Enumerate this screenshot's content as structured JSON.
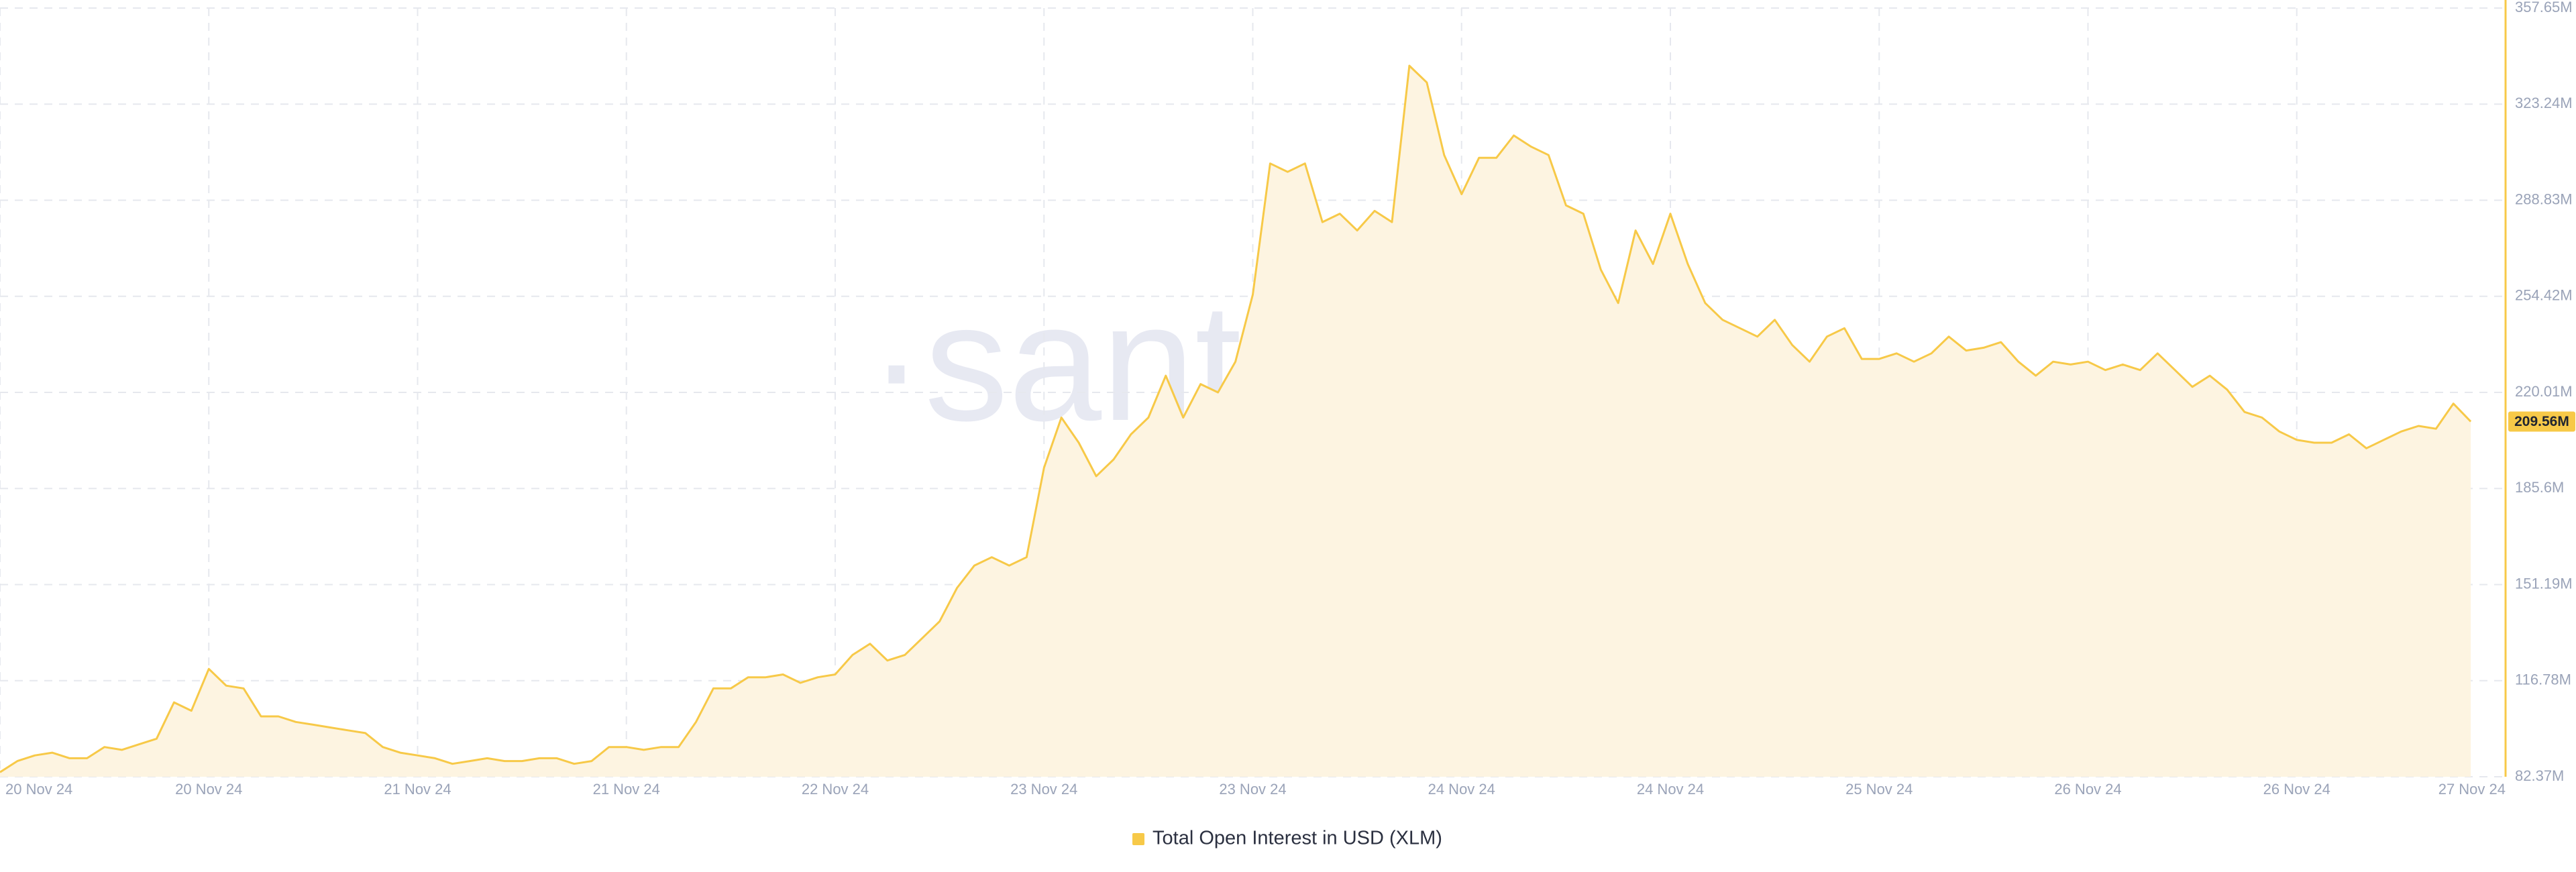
{
  "chart_data": {
    "type": "area",
    "watermark": "·santiment·",
    "series": [
      {
        "name": "Total Open Interest in USD (XLM)",
        "color": "#f7c948",
        "fill": "#fdf4e1",
        "x": [
          0,
          1,
          2,
          3,
          4,
          5,
          6,
          7,
          8,
          9,
          10,
          11,
          12,
          13,
          14,
          15,
          16,
          17,
          18,
          19,
          20,
          21,
          22,
          23,
          24,
          25,
          26,
          27,
          28,
          29,
          30,
          31,
          32,
          33,
          34,
          35,
          36,
          37,
          38,
          39,
          40,
          41,
          42,
          43,
          44,
          45,
          46,
          47,
          48,
          49,
          50,
          51,
          52,
          53,
          54,
          55,
          56,
          57,
          58,
          59,
          60,
          61,
          62,
          63,
          64,
          65,
          66,
          67,
          68,
          69,
          70,
          71,
          72,
          73,
          74,
          75,
          76,
          77,
          78,
          79,
          80,
          81,
          82,
          83,
          84,
          85,
          86,
          87,
          88,
          89,
          90,
          91,
          92,
          93,
          94,
          95,
          96,
          97,
          98,
          99,
          100,
          101,
          102,
          103,
          104,
          105,
          106,
          107,
          108,
          109,
          110,
          111,
          112,
          113,
          114,
          115,
          116,
          117,
          118,
          119,
          120,
          121,
          122,
          123,
          124,
          125,
          126,
          127,
          128,
          129,
          130,
          131,
          132,
          133,
          134,
          135,
          136,
          137,
          138,
          139,
          140,
          141,
          142
        ],
        "values": [
          84,
          88,
          90,
          91,
          89,
          89,
          93,
          92,
          94,
          96,
          109,
          106,
          121,
          115,
          114,
          104,
          104,
          102,
          101,
          100,
          99,
          98,
          93,
          91,
          90,
          89,
          87,
          88,
          89,
          88,
          88,
          89,
          89,
          87,
          88,
          93,
          93,
          92,
          93,
          93,
          102,
          114,
          114,
          118,
          118,
          119,
          116,
          118,
          119,
          126,
          130,
          124,
          126,
          132,
          138,
          150,
          158,
          161,
          158,
          161,
          193,
          211,
          202,
          190,
          196,
          205,
          211,
          226,
          211,
          223,
          220,
          231,
          255,
          302,
          299,
          302,
          281,
          284,
          278,
          285,
          281,
          337,
          331,
          305,
          291,
          304,
          304,
          312,
          308,
          305,
          287,
          284,
          264,
          252,
          278,
          266,
          284,
          266,
          252,
          246,
          243,
          240,
          246,
          237,
          231,
          240,
          243,
          232,
          232,
          234,
          231,
          234,
          240,
          235,
          236,
          238,
          231,
          226,
          231,
          230,
          231,
          228,
          230,
          228,
          234,
          228,
          222,
          226,
          221,
          213,
          211,
          206,
          203,
          202,
          202,
          205,
          200,
          203,
          206,
          208,
          207,
          216,
          209.56
        ],
        "value_labels": [
          null,
          null,
          null,
          null,
          null,
          null,
          null,
          null,
          null,
          null,
          null,
          null,
          null,
          null,
          null,
          null,
          null,
          null,
          null,
          null,
          null,
          null,
          null,
          null,
          null,
          null,
          null,
          null,
          null,
          null,
          null,
          null,
          null,
          null,
          null,
          null,
          null,
          null,
          null,
          null,
          null,
          null,
          null,
          null,
          null,
          null,
          null,
          null,
          null,
          null,
          null,
          null,
          null,
          null,
          null,
          null,
          null,
          null,
          null,
          null,
          null,
          null,
          null,
          null,
          null,
          null,
          null,
          null,
          null,
          null,
          null,
          null,
          null,
          null,
          null,
          null,
          null,
          null,
          null,
          null,
          null,
          null,
          null,
          null,
          null,
          null,
          null,
          null,
          null,
          null,
          null,
          null,
          null,
          null,
          null,
          null,
          null,
          null,
          null,
          null,
          null,
          null,
          null,
          null,
          null,
          null,
          null,
          null,
          null,
          null,
          null,
          null,
          null,
          null,
          null,
          null,
          null,
          null,
          null,
          null,
          null,
          null,
          null,
          null,
          null,
          null,
          null,
          null,
          null,
          null,
          null,
          null,
          null,
          null,
          null,
          null,
          null,
          null,
          null,
          null,
          null,
          null,
          "209.56M"
        ]
      }
    ],
    "xlim": [
      0,
      144
    ],
    "xticks": [
      {
        "value": 0,
        "label": "20 Nov 24"
      },
      {
        "value": 12,
        "label": "20 Nov 24"
      },
      {
        "value": 24,
        "label": "21 Nov 24"
      },
      {
        "value": 36,
        "label": "21 Nov 24"
      },
      {
        "value": 48,
        "label": "22 Nov 24"
      },
      {
        "value": 60,
        "label": "23 Nov 24"
      },
      {
        "value": 72,
        "label": "23 Nov 24"
      },
      {
        "value": 84,
        "label": "24 Nov 24"
      },
      {
        "value": 96,
        "label": "24 Nov 24"
      },
      {
        "value": 108,
        "label": "25 Nov 24"
      },
      {
        "value": 120,
        "label": "26 Nov 24"
      },
      {
        "value": 132,
        "label": "26 Nov 24"
      },
      {
        "value": 144,
        "label": "27 Nov 24"
      }
    ],
    "ylim": [
      82.37,
      357.65
    ],
    "yticks": [
      {
        "value": 82.37,
        "label": "82.37M"
      },
      {
        "value": 116.78,
        "label": "116.78M"
      },
      {
        "value": 151.19,
        "label": "151.19M"
      },
      {
        "value": 185.6,
        "label": "185.6M"
      },
      {
        "value": 220.01,
        "label": "220.01M"
      },
      {
        "value": 254.42,
        "label": "254.42M"
      },
      {
        "value": 288.83,
        "label": "288.83M"
      },
      {
        "value": 323.24,
        "label": "323.24M"
      },
      {
        "value": 357.65,
        "label": "357.65M"
      }
    ],
    "grid": true,
    "legend": "bottom"
  }
}
